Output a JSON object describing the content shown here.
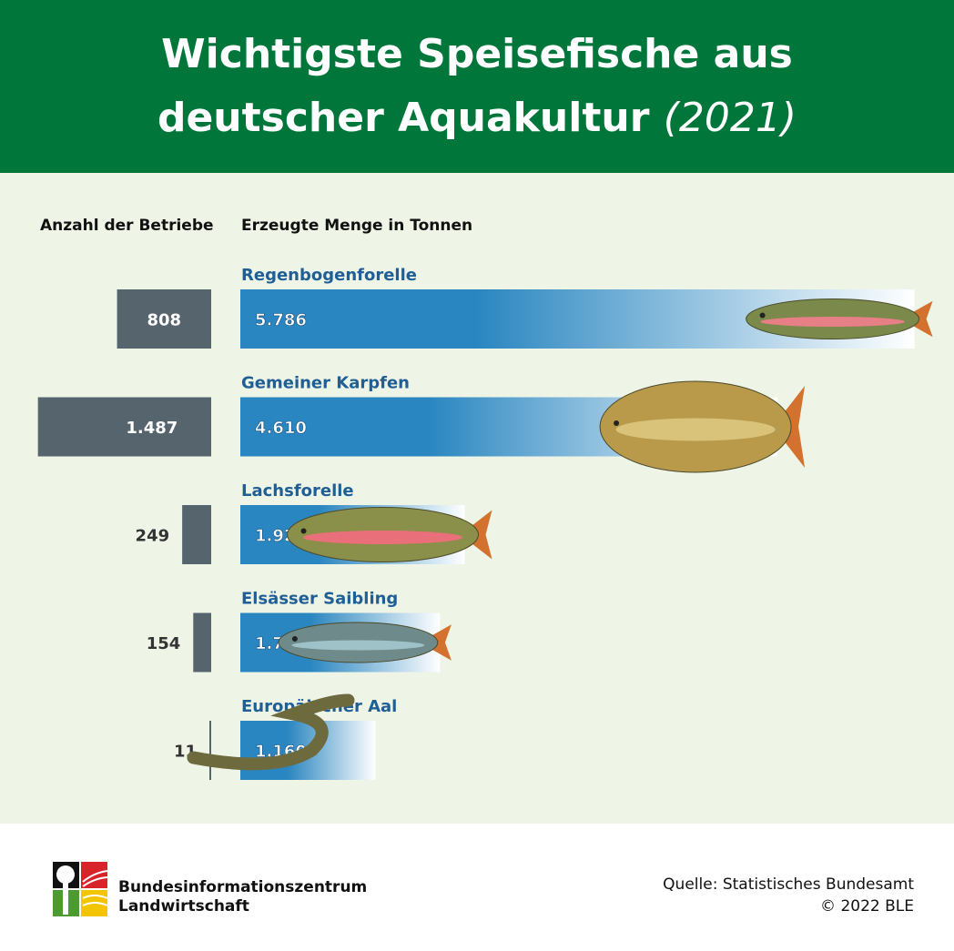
{
  "header": {
    "title_line1": "Wichtigste Speisefische aus",
    "title_line2": "deutscher Aquakultur",
    "year": "(2021)"
  },
  "chart_data": {
    "type": "bar",
    "orientation": "horizontal-butterfly",
    "left_label": "Anzahl der Betriebe",
    "right_label": "Erzeugte Menge in Tonnen",
    "categories": [
      "Regenbogenforelle",
      "Gemeiner Karpfen",
      "Lachsforelle",
      "Elsässer Saibling",
      "Europäischer Aal"
    ],
    "series": [
      {
        "name": "Anzahl der Betriebe",
        "values": [
          808,
          1487,
          249,
          154,
          11
        ],
        "labels": [
          "808",
          "1.487",
          "249",
          "154",
          "11"
        ],
        "color": "#56646e"
      },
      {
        "name": "Erzeugte Menge in Tonnen",
        "values": [
          5786,
          4610,
          1926,
          1714,
          1160
        ],
        "labels": [
          "5.786",
          "4.610",
          "1.926",
          "1.714",
          "1.160"
        ],
        "color": "#2a86c0"
      }
    ],
    "category_color": "#1f5f95"
  },
  "footer": {
    "brand_line1": "Bundesinformationszentrum",
    "brand_line2": "Landwirtschaft",
    "source": "Quelle: Statistisches Bundesamt",
    "copyright": "© 2022 BLE"
  }
}
